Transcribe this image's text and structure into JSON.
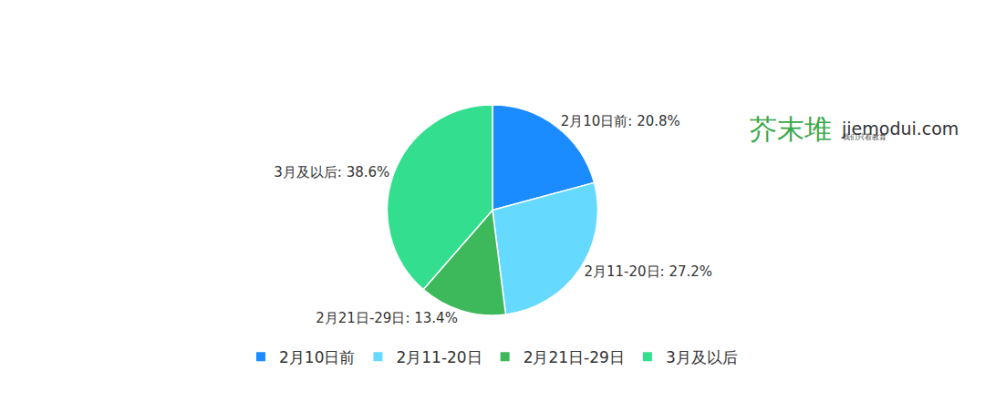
{
  "chart_data": {
    "type": "pie",
    "categories": [
      "2月10日前",
      "2月11-20日",
      "2月21日-29日",
      "3月及以后"
    ],
    "values": [
      20.8,
      27.2,
      13.4,
      38.6
    ],
    "value_labels": [
      "2月10日前: 20.8%",
      "2月11-20日: 27.2%",
      "2月21日-29日: 13.4%",
      "3月及以后: 38.6%"
    ],
    "colors": [
      "#1a8cff",
      "#66d9ff",
      "#3db85a",
      "#33de8f"
    ],
    "data_labels": true,
    "legend": "bottom",
    "annotations": [
      "芥末堆",
      "jiemodui.com",
      "我们只看教育"
    ]
  }
}
